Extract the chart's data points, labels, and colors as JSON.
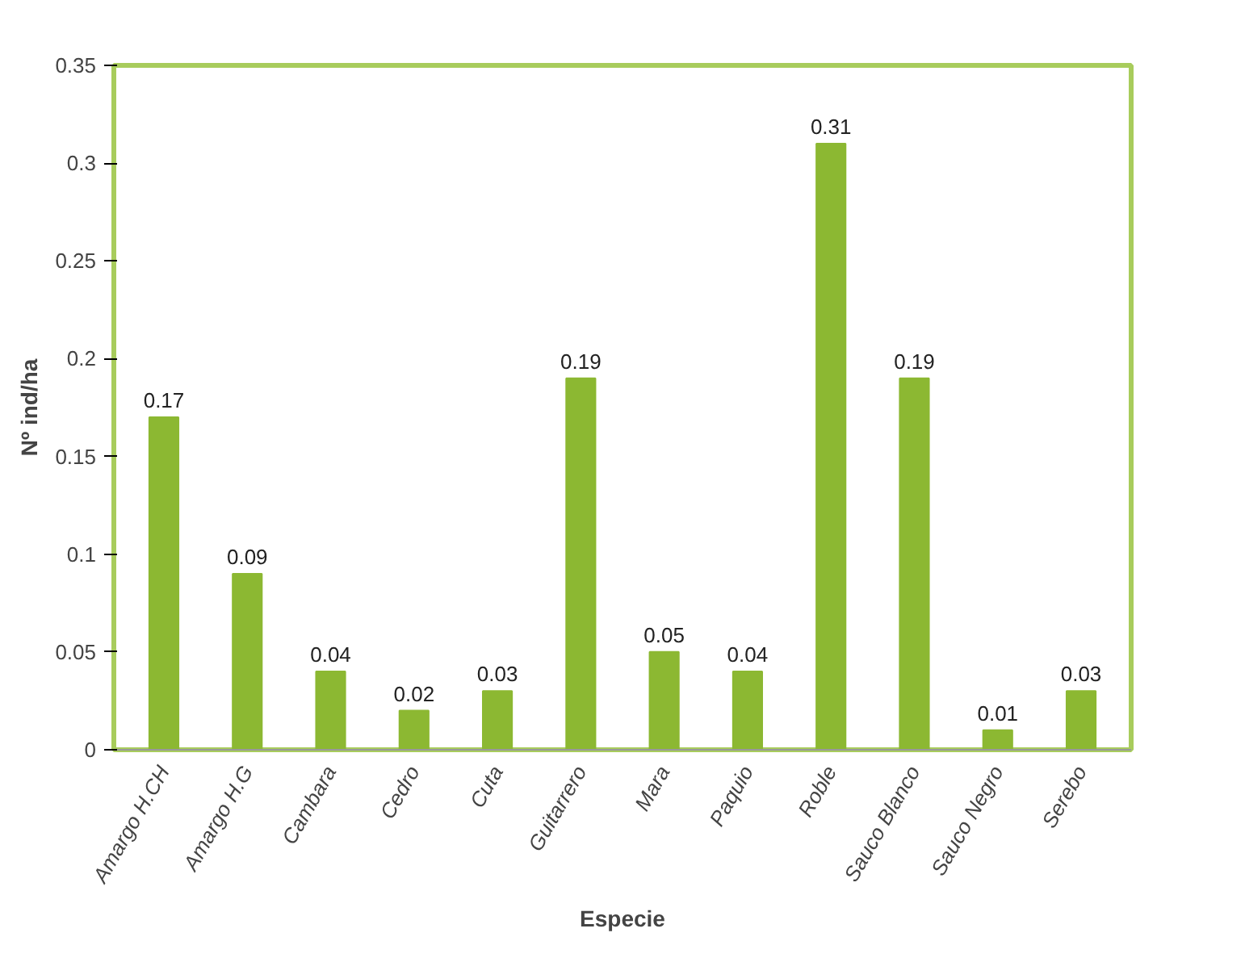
{
  "chart_data": {
    "type": "bar",
    "xlabel": "Especie",
    "ylabel": "Nº ind/ha",
    "categories": [
      "Amargo H.CH",
      "Amargo H.G",
      "Cambara",
      "Cedro",
      "Cuta",
      "Guitarrero",
      "Mara",
      "Paquio",
      "Roble",
      "Sauco Blanco",
      "Sauco Negro",
      "Serebo"
    ],
    "values": [
      0.17,
      0.09,
      0.04,
      0.02,
      0.03,
      0.19,
      0.05,
      0.04,
      0.31,
      0.19,
      0.01,
      0.03
    ],
    "color": "#8cb832",
    "ylim": [
      0,
      0.35
    ],
    "yticks": [
      0,
      0.05,
      0.1,
      0.15,
      0.2,
      0.25,
      0.3,
      0.35
    ],
    "grid": false,
    "data_labels": true
  }
}
